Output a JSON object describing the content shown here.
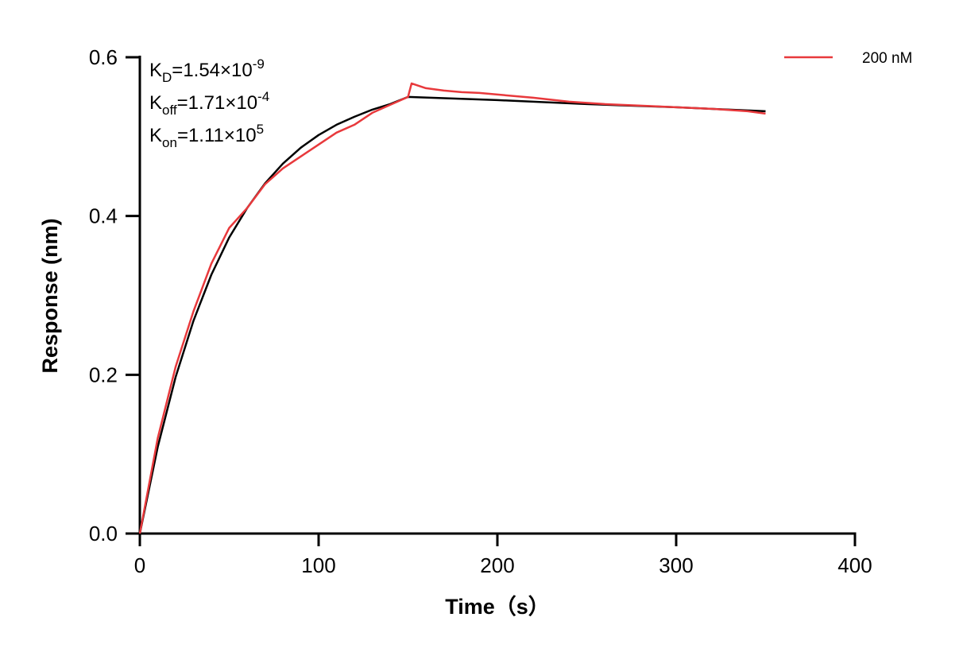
{
  "chart_data": {
    "type": "line",
    "xlabel": "Time（s）",
    "ylabel": "Response (nm)",
    "xlim": [
      0,
      400
    ],
    "ylim": [
      0,
      0.6
    ],
    "x_ticks": [
      "0",
      "100",
      "200",
      "300",
      "400"
    ],
    "y_ticks": [
      "0.0",
      "0.2",
      "0.4",
      "0.6"
    ],
    "grid": false,
    "legend_position": "top-right",
    "annotations": {
      "kd": {
        "main": "K",
        "sub": "D",
        "value": "=1.54×10",
        "exp": "-9"
      },
      "koff": {
        "main": "K",
        "sub": "off",
        "value": "=1.71×10",
        "exp": "-4"
      },
      "kon": {
        "main": "K",
        "sub": "on",
        "value": "=1.11×10",
        "exp": "5"
      }
    },
    "series": [
      {
        "name": "200 nM",
        "color": "#e8393c",
        "x": [
          0,
          10,
          20,
          30,
          40,
          50,
          60,
          70,
          80,
          90,
          100,
          110,
          120,
          130,
          140,
          150,
          152,
          160,
          170,
          180,
          190,
          200,
          220,
          240,
          260,
          280,
          300,
          320,
          340,
          350
        ],
        "y": [
          0,
          0.12,
          0.21,
          0.28,
          0.34,
          0.385,
          0.41,
          0.44,
          0.46,
          0.475,
          0.49,
          0.505,
          0.515,
          0.53,
          0.54,
          0.55,
          0.567,
          0.561,
          0.558,
          0.556,
          0.555,
          0.553,
          0.549,
          0.544,
          0.541,
          0.539,
          0.537,
          0.535,
          0.532,
          0.529
        ]
      },
      {
        "color": "#000000",
        "x": [
          0,
          10,
          20,
          30,
          40,
          50,
          60,
          70,
          80,
          90,
          100,
          110,
          120,
          130,
          140,
          150,
          200,
          250,
          300,
          350
        ],
        "y": [
          0,
          0.109,
          0.197,
          0.268,
          0.326,
          0.373,
          0.41,
          0.441,
          0.466,
          0.486,
          0.502,
          0.515,
          0.525,
          0.534,
          0.541,
          0.55,
          0.546,
          0.541,
          0.537,
          0.532
        ]
      }
    ]
  }
}
